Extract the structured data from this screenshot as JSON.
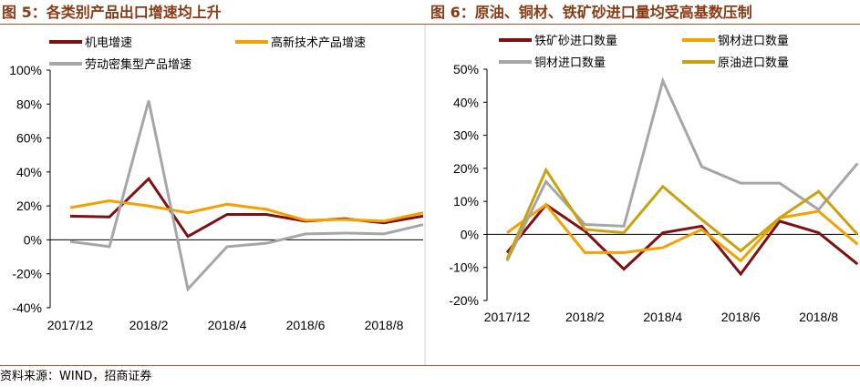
{
  "source": "资料来源：WIND，招商证券",
  "colors": {
    "rule": "#a0522d",
    "title": "#8a3a14"
  },
  "chart_data": [
    {
      "type": "line",
      "title": "图 5：各类别产品出口增速均上升",
      "categories": [
        "2017/12",
        "2018/1",
        "2018/2",
        "2018/3",
        "2018/4",
        "2018/5",
        "2018/6",
        "2018/7",
        "2018/8",
        "2018/9"
      ],
      "x_tick_labels": [
        "2017/12",
        "2018/2",
        "2018/4",
        "2018/6",
        "2018/8"
      ],
      "y_tick_labels": [
        "100%",
        "80%",
        "60%",
        "40%",
        "20%",
        "0%",
        "-20%",
        "-40%"
      ],
      "ylim": [
        -40,
        100
      ],
      "y_unit": "%",
      "grid": false,
      "legend_position": "top",
      "series": [
        {
          "name": "机电增速",
          "color": "#7f1010",
          "values": [
            14,
            13.5,
            36,
            2,
            15,
            15,
            11,
            12.5,
            10,
            14
          ]
        },
        {
          "name": "高新技术产品增速",
          "color": "#f5a000",
          "values": [
            19,
            23,
            20,
            16,
            21,
            18,
            11.5,
            12,
            11,
            16
          ]
        },
        {
          "name": "劳动密集型产品增速",
          "color": "#a6a6a6",
          "values": [
            -1,
            -4,
            82,
            -29,
            -4,
            -2,
            3.5,
            4,
            3.5,
            9
          ]
        }
      ]
    },
    {
      "type": "line",
      "title": "图 6：原油、铜材、铁矿砂进口量均受高基数压制",
      "categories": [
        "2017/12",
        "2018/1",
        "2018/2",
        "2018/3",
        "2018/4",
        "2018/5",
        "2018/6",
        "2018/7",
        "2018/8",
        "2018/9"
      ],
      "x_tick_labels": [
        "2017/12",
        "2018/2",
        "2018/4",
        "2018/6",
        "2018/8"
      ],
      "y_tick_labels": [
        "50%",
        "40%",
        "30%",
        "20%",
        "10%",
        "0%",
        "-10%",
        "-20%"
      ],
      "ylim": [
        -20,
        50
      ],
      "y_unit": "%",
      "grid": false,
      "legend_position": "top",
      "series": [
        {
          "name": "铁矿砂进口数量",
          "color": "#7f1010",
          "values": [
            -5.5,
            9,
            1,
            -10.5,
            0.5,
            2.5,
            -12,
            4,
            0.5,
            -9
          ]
        },
        {
          "name": "钢材进口数量",
          "color": "#f5a000",
          "values": [
            0.5,
            9,
            -5.5,
            -5.5,
            -4,
            1.5,
            -8,
            5,
            7,
            -3
          ]
        },
        {
          "name": "铜材进口数量",
          "color": "#a6a6a6",
          "values": [
            -8,
            16,
            3,
            2.5,
            46.5,
            20.5,
            15.5,
            15.5,
            7.5,
            21.5
          ]
        },
        {
          "name": "原油进口数量",
          "color": "#c9a20e",
          "values": [
            -7.5,
            19.5,
            1.5,
            0.5,
            14.5,
            4.5,
            -5,
            5,
            13,
            0
          ]
        }
      ]
    }
  ]
}
